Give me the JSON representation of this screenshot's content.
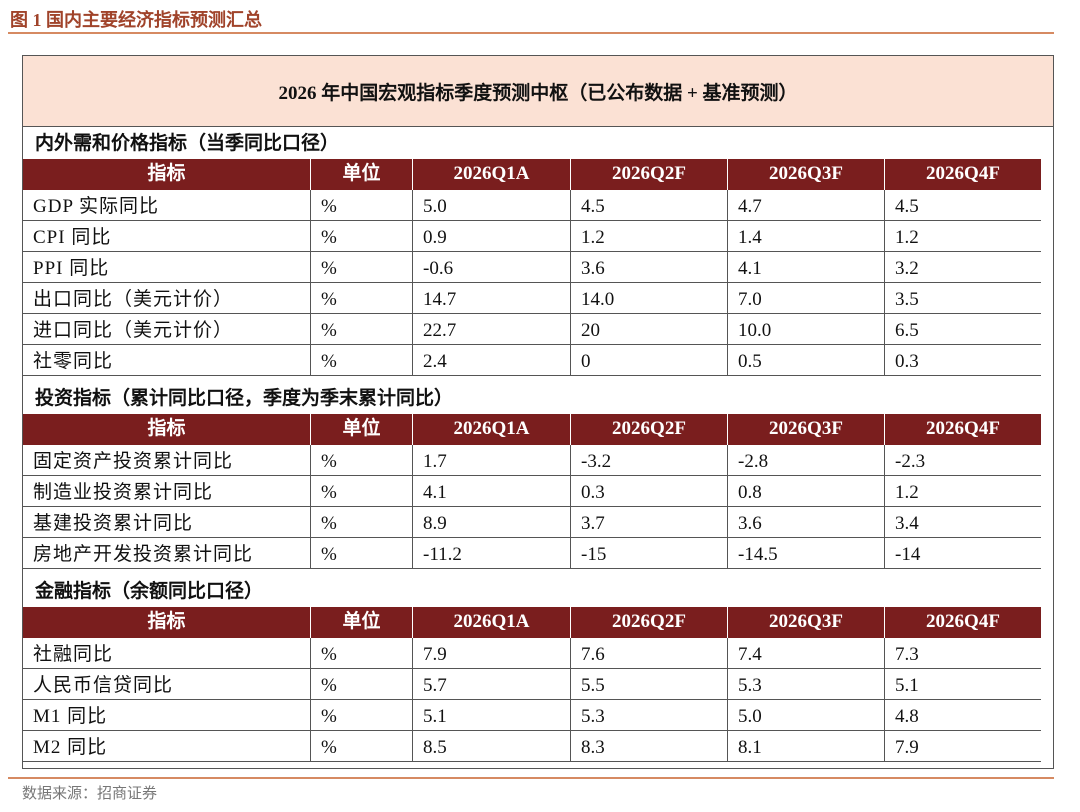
{
  "caption": "图 1 国内主要经济指标预测汇总",
  "table": {
    "title": "2026 年中国宏观指标季度预测中枢（已公布数据 + 基准预测）",
    "sections": [
      {
        "heading": "内外需和价格指标（当季同比口径）",
        "header": [
          "指标",
          "单位",
          "2026Q1A",
          "2026Q2F",
          "2026Q3F",
          "2026Q4F"
        ],
        "rows": [
          [
            "GDP 实际同比",
            "%",
            "5.0",
            "4.5",
            "4.7",
            "4.5"
          ],
          [
            "CPI 同比",
            "%",
            "0.9",
            "1.2",
            "1.4",
            "1.2"
          ],
          [
            "PPI 同比",
            "%",
            "-0.6",
            "3.6",
            "4.1",
            "3.2"
          ],
          [
            "出口同比（美元计价）",
            "%",
            "14.7",
            "14.0",
            "7.0",
            "3.5"
          ],
          [
            "进口同比（美元计价）",
            "%",
            "22.7",
            "20",
            "10.0",
            "6.5"
          ],
          [
            "社零同比",
            "%",
            "2.4",
            "0",
            "0.5",
            "0.3"
          ]
        ]
      },
      {
        "heading": "投资指标（累计同比口径，季度为季末累计同比）",
        "header": [
          "指标",
          "单位",
          "2026Q1A",
          "2026Q2F",
          "2026Q3F",
          "2026Q4F"
        ],
        "rows": [
          [
            "固定资产投资累计同比",
            "%",
            "1.7",
            "-3.2",
            "-2.8",
            "-2.3"
          ],
          [
            "制造业投资累计同比",
            "%",
            "4.1",
            "0.3",
            "0.8",
            "1.2"
          ],
          [
            "基建投资累计同比",
            "%",
            "8.9",
            "3.7",
            "3.6",
            "3.4"
          ],
          [
            "房地产开发投资累计同比",
            "%",
            "-11.2",
            "-15",
            "-14.5",
            "-14"
          ]
        ]
      },
      {
        "heading": "金融指标（余额同比口径）",
        "header": [
          "指标",
          "单位",
          "2026Q1A",
          "2026Q2F",
          "2026Q3F",
          "2026Q4F"
        ],
        "rows": [
          [
            "社融同比",
            "%",
            "7.9",
            "7.6",
            "7.4",
            "7.3"
          ],
          [
            "人民币信贷同比",
            "%",
            "5.7",
            "5.5",
            "5.3",
            "5.1"
          ],
          [
            "M1 同比",
            "%",
            "5.1",
            "5.3",
            "5.0",
            "4.8"
          ],
          [
            "M2 同比",
            "%",
            "8.5",
            "8.3",
            "8.1",
            "7.9"
          ]
        ]
      }
    ]
  },
  "source": "数据来源：招商证券"
}
